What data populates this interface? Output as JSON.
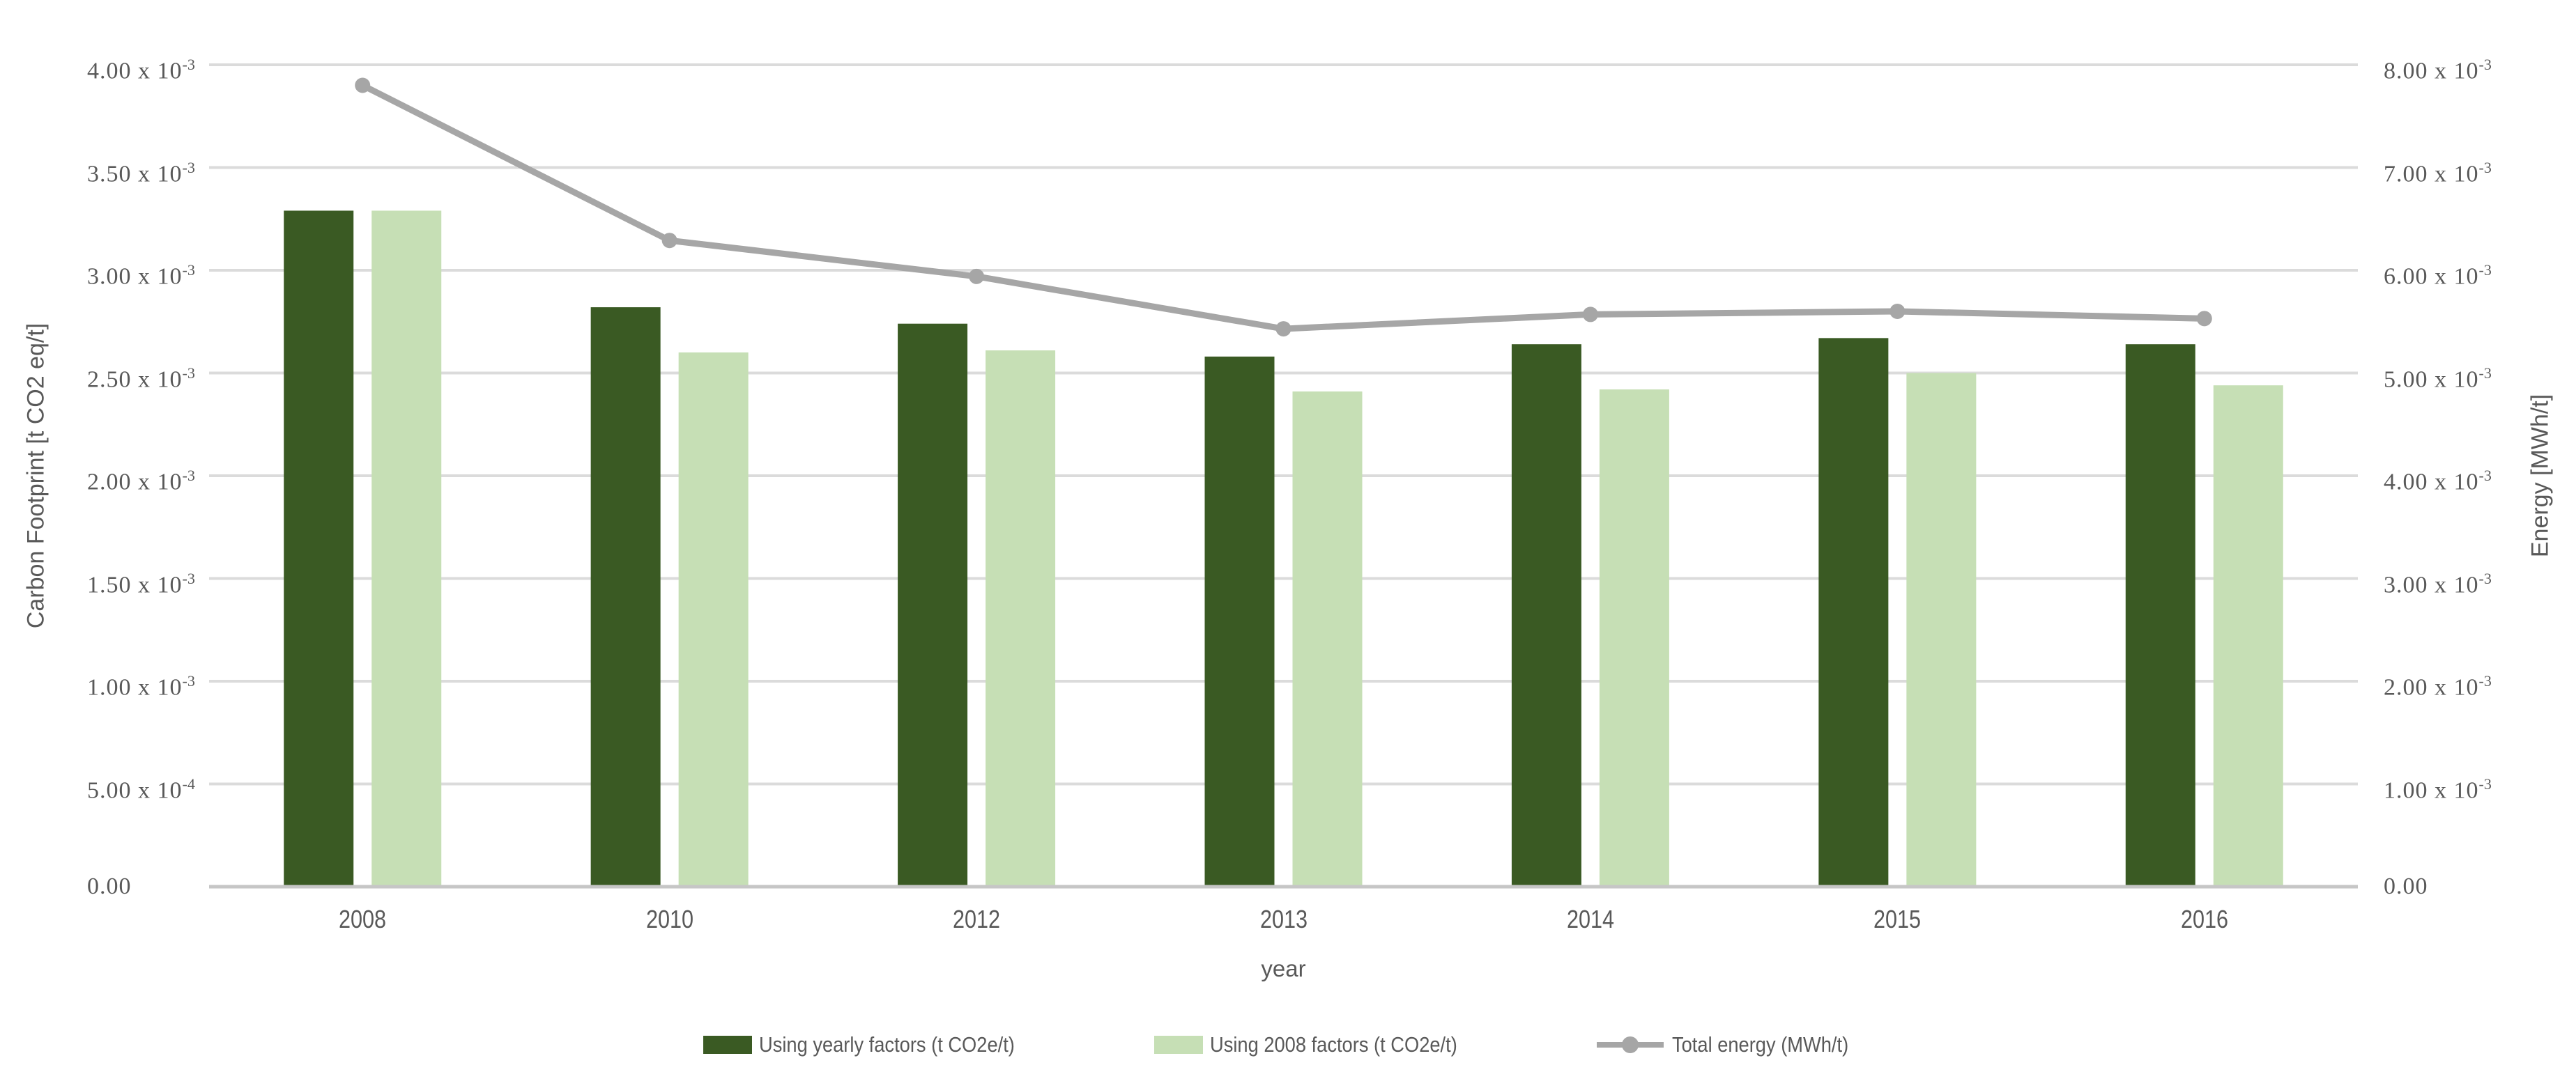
{
  "chart_data": {
    "type": "bar+line-combo",
    "title": "",
    "categories": [
      "2008",
      "2010",
      "2012",
      "2013",
      "2014",
      "2015",
      "2016"
    ],
    "series": [
      {
        "name": "Using yearly factors (t CO2e/t)",
        "type": "bar",
        "axis": "left",
        "color": "#3A5A23",
        "values": [
          0.00329,
          0.00282,
          0.00274,
          0.00258,
          0.00264,
          0.00267,
          0.00264
        ]
      },
      {
        "name": "Using 2008 factors (t CO2e/t)",
        "type": "bar",
        "axis": "left",
        "color": "#C6DFB5",
        "values": [
          0.00329,
          0.0026,
          0.00261,
          0.00241,
          0.00242,
          0.0025,
          0.00244
        ]
      },
      {
        "name": "Total energy (MWh/t)",
        "type": "line",
        "axis": "right",
        "color": "#A6A6A6",
        "values": [
          0.0078,
          0.00629,
          0.00594,
          0.00543,
          0.00557,
          0.0056,
          0.00553
        ]
      }
    ],
    "x_axis": {
      "title": "year"
    },
    "left_axis": {
      "title": "Carbon Footprint [t CO2 eq/t]",
      "min": 0,
      "max": 0.004,
      "ticks": [
        {
          "v": 0.004,
          "base": "4.00 x 10",
          "exp": "-3"
        },
        {
          "v": 0.0035,
          "base": "3.50 x 10",
          "exp": "-3"
        },
        {
          "v": 0.003,
          "base": "3.00 x 10",
          "exp": "-3"
        },
        {
          "v": 0.0025,
          "base": "2.50 x 10",
          "exp": "-3"
        },
        {
          "v": 0.002,
          "base": "2.00 x 10",
          "exp": "-3"
        },
        {
          "v": 0.0015,
          "base": "1.50 x 10",
          "exp": "-3"
        },
        {
          "v": 0.001,
          "base": "1.00 x 10",
          "exp": "-3"
        },
        {
          "v": 0.0005,
          "base": "5.00 x 10",
          "exp": "-4"
        },
        {
          "v": 0,
          "base": "0.00",
          "exp": ""
        }
      ]
    },
    "right_axis": {
      "title": "Energy [MWh/t]",
      "min": 0,
      "max": 0.008,
      "ticks": [
        {
          "v": 0.008,
          "base": "8.00 x 10",
          "exp": "-3"
        },
        {
          "v": 0.007,
          "base": "7.00 x 10",
          "exp": "-3"
        },
        {
          "v": 0.006,
          "base": "6.00 x 10",
          "exp": "-3"
        },
        {
          "v": 0.005,
          "base": "5.00 x 10",
          "exp": "-3"
        },
        {
          "v": 0.004,
          "base": "4.00 x 10",
          "exp": "-3"
        },
        {
          "v": 0.003,
          "base": "3.00 x 10",
          "exp": "-3"
        },
        {
          "v": 0.002,
          "base": "2.00 x 10",
          "exp": "-3"
        },
        {
          "v": 0.001,
          "base": "1.00 x 10",
          "exp": "-3"
        },
        {
          "v": 0,
          "base": "0.00",
          "exp": ""
        }
      ]
    },
    "grid": true,
    "legend_position": "bottom",
    "colors": {
      "gridline": "#DBDBDB",
      "axis_line": "#C6C6C6",
      "text": "#595959",
      "background": "#FFFFFF"
    }
  }
}
